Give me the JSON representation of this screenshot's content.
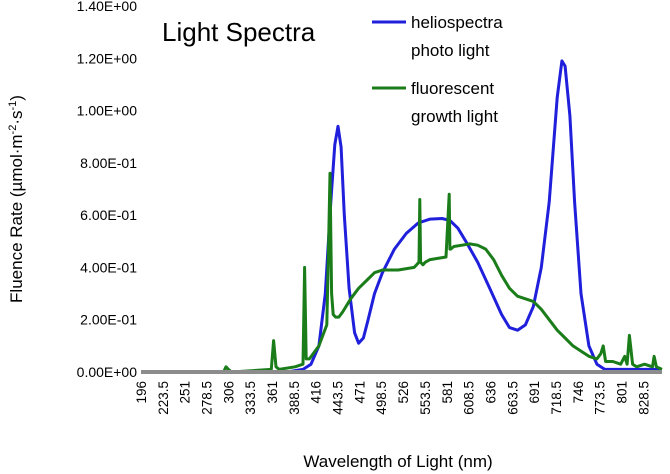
{
  "chart_data": {
    "type": "line",
    "title": "Light Spectra",
    "xlabel": "Wavelength of Light (nm)",
    "ylabel": "Fluence Rate (µmol·m⁻²·s⁻¹)",
    "ylabel_parts": {
      "base": "Fluence Rate (µmol·m",
      "exp1": "-2",
      "mid": "·s",
      "exp2": "-1",
      "end": ")"
    },
    "xlim": [
      196,
      852
    ],
    "ylim": [
      0,
      1.4
    ],
    "y_ticks": [
      0,
      0.2,
      0.4,
      0.6,
      0.8,
      1.0,
      1.2,
      1.4
    ],
    "y_tick_labels": [
      "0.00E+00",
      "2.00E-01",
      "4.00E-01",
      "6.00E-01",
      "8.00E-01",
      "1.00E+00",
      "1.20E+00",
      "1.40E+00"
    ],
    "x_ticks": [
      196,
      223.5,
      251,
      278.5,
      306,
      333.5,
      361,
      388.5,
      416,
      443.5,
      471,
      498.5,
      526,
      553.5,
      581,
      608.5,
      636,
      663.5,
      691,
      718.5,
      746,
      773.5,
      801,
      828.5
    ],
    "x_tick_labels": [
      "196",
      "223.5",
      "251",
      "278.5",
      "306",
      "333.5",
      "361",
      "388.5",
      "416",
      "443.5",
      "471",
      "498.5",
      "526",
      "553.5",
      "581",
      "608.5",
      "636",
      "663.5",
      "691",
      "718.5",
      "746",
      "773.5",
      "801",
      "828.5"
    ],
    "legend": "top-right",
    "grid": false,
    "series": [
      {
        "name": "heliospectra photo light",
        "color": "#1f1fdc",
        "x": [
          196,
          380,
          400,
          410,
          420,
          428,
          435,
          440,
          444,
          448,
          452,
          458,
          465,
          470,
          476,
          482,
          490,
          500,
          515,
          530,
          545,
          560,
          575,
          585,
          595,
          605,
          620,
          635,
          650,
          660,
          670,
          680,
          690,
          700,
          710,
          715,
          720,
          726,
          730,
          736,
          742,
          750,
          760,
          770,
          780,
          852
        ],
        "y": [
          0,
          0,
          0.01,
          0.03,
          0.1,
          0.3,
          0.65,
          0.87,
          0.94,
          0.86,
          0.6,
          0.32,
          0.15,
          0.11,
          0.13,
          0.2,
          0.3,
          0.38,
          0.47,
          0.53,
          0.57,
          0.585,
          0.587,
          0.58,
          0.55,
          0.5,
          0.42,
          0.32,
          0.22,
          0.17,
          0.16,
          0.18,
          0.25,
          0.4,
          0.65,
          0.85,
          1.05,
          1.19,
          1.17,
          0.98,
          0.65,
          0.3,
          0.1,
          0.03,
          0.01,
          0.01
        ]
      },
      {
        "name": "fluorescent growth light",
        "color": "#1a7d1a",
        "x": [
          196,
          300,
          303,
          306,
          310,
          360,
          363,
          366,
          370,
          390,
          400,
          402,
          404,
          408,
          420,
          430,
          432,
          434,
          436,
          438,
          441,
          445,
          450,
          460,
          470,
          480,
          490,
          500,
          520,
          540,
          546,
          547,
          548,
          551,
          554,
          560,
          580,
          584,
          585,
          586,
          590,
          600,
          610,
          620,
          630,
          640,
          650,
          660,
          670,
          680,
          690,
          700,
          710,
          720,
          730,
          740,
          750,
          760,
          770,
          775,
          778,
          781,
          790,
          800,
          805,
          808,
          811,
          815,
          820,
          830,
          840,
          842,
          845,
          852
        ],
        "y": [
          0,
          0,
          0.02,
          0.01,
          0,
          0.01,
          0.12,
          0.02,
          0.01,
          0.02,
          0.03,
          0.4,
          0.05,
          0.05,
          0.1,
          0.18,
          0.45,
          0.76,
          0.3,
          0.22,
          0.21,
          0.21,
          0.23,
          0.28,
          0.32,
          0.35,
          0.38,
          0.39,
          0.39,
          0.4,
          0.42,
          0.66,
          0.42,
          0.41,
          0.42,
          0.43,
          0.44,
          0.68,
          0.47,
          0.47,
          0.48,
          0.485,
          0.49,
          0.485,
          0.47,
          0.43,
          0.37,
          0.32,
          0.29,
          0.28,
          0.27,
          0.24,
          0.2,
          0.16,
          0.13,
          0.1,
          0.08,
          0.06,
          0.05,
          0.07,
          0.1,
          0.04,
          0.04,
          0.03,
          0.06,
          0.03,
          0.14,
          0.03,
          0.02,
          0.03,
          0.02,
          0.06,
          0.02,
          0.01
        ]
      }
    ],
    "legend_entries": [
      {
        "series": 0,
        "lines": [
          "heliospectra",
          "photo light"
        ]
      },
      {
        "series": 1,
        "lines": [
          "fluorescent",
          "growth light"
        ]
      }
    ]
  }
}
